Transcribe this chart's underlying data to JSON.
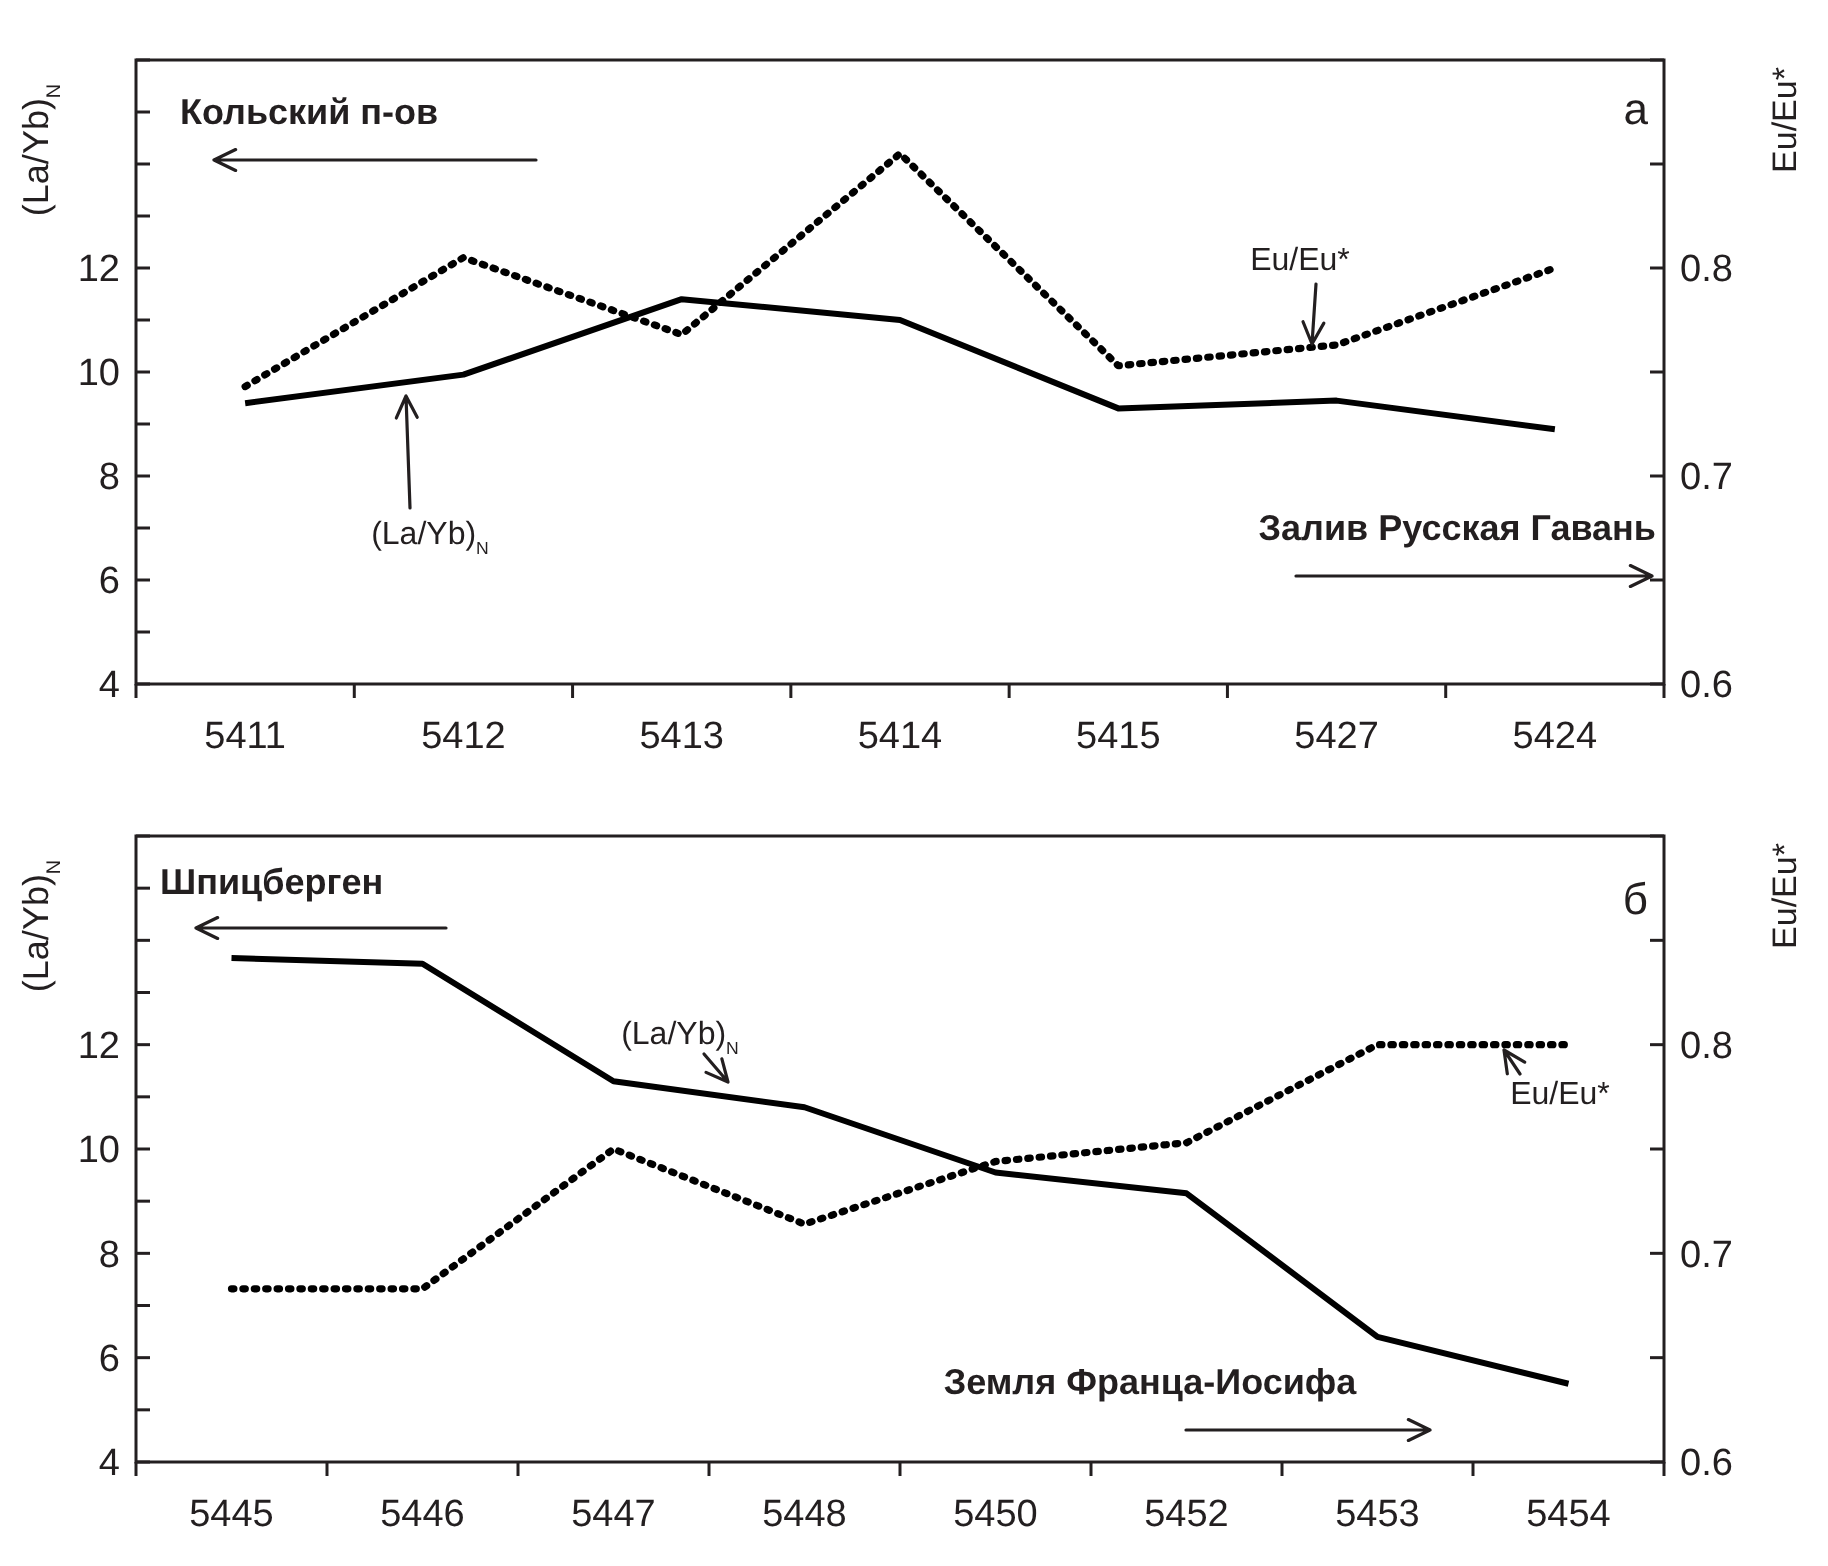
{
  "chart_data": [
    {
      "type": "line",
      "categories": [
        "5411",
        "5412",
        "5413",
        "5414",
        "5415",
        "5427",
        "5424"
      ],
      "ylabel": "(La/Yb)$_{N}$",
      "y2label": "Eu/Eu*",
      "ylim": [
        4,
        16
      ],
      "yticks": [
        4,
        {
          "value": 5,
          "label": null
        },
        6,
        {
          "value": 7,
          "label": null
        },
        8,
        {
          "value": 9,
          "label": null
        },
        10,
        {
          "value": 11,
          "label": null
        },
        12,
        {
          "value": 13,
          "label": null
        },
        {
          "value": 14,
          "label": null
        },
        {
          "value": 15,
          "label": null
        },
        {
          "value": 16,
          "label": null
        }
      ],
      "y2lim": [
        0.6,
        0.9
      ],
      "y2ticks": [
        0.6,
        {
          "value": 0.65,
          "label": null
        },
        0.7,
        {
          "value": 0.75,
          "label": null
        },
        0.8,
        {
          "value": 0.85,
          "label": null
        },
        {
          "value": 0.9,
          "label": null
        }
      ],
      "series": [
        {
          "name": "(La/Yb)$_{N}$",
          "color": "#000000",
          "line_style": "solid",
          "values": [
            9.4,
            9.95,
            11.4,
            11.0,
            9.3,
            9.45,
            8.9
          ]
        },
        {
          "name": "Eu/Eu*",
          "color": "#000000",
          "line_style": "dotted",
          "axis": "y2",
          "values": [
            0.743,
            0.805,
            0.768,
            0.855,
            0.753,
            0.763,
            0.8
          ]
        }
      ],
      "annotations": [
        "Кольский п-ов",
        "Залив Русская Гавань",
        "а"
      ]
    },
    {
      "type": "line",
      "categories": [
        "5445",
        "5446",
        "5447",
        "5448",
        "5450",
        "5452",
        "5453",
        "5454"
      ],
      "ylabel": "(La/Yb)$_{N}$",
      "y2label": "Eu/Eu*",
      "ylim": [
        4,
        16
      ],
      "yticks": [
        4,
        {
          "value": 5,
          "label": null
        },
        6,
        {
          "value": 7,
          "label": null
        },
        8,
        {
          "value": 9,
          "label": null
        },
        10,
        {
          "value": 11,
          "label": null
        },
        12,
        {
          "value": 13,
          "label": null
        },
        {
          "value": 14,
          "label": null
        },
        {
          "value": 15,
          "label": null
        },
        {
          "value": 16,
          "label": null
        }
      ],
      "y2lim": [
        0.6,
        0.9
      ],
      "y2ticks": [
        0.6,
        {
          "value": 0.65,
          "label": null
        },
        0.7,
        {
          "value": 0.75,
          "label": null
        },
        0.8,
        {
          "value": 0.85,
          "label": null
        },
        {
          "value": 0.9,
          "label": null
        }
      ],
      "series": [
        {
          "name": "(La/Yb)$_{N}$",
          "color": "#000000",
          "line_style": "solid",
          "values": [
            13.66,
            13.55,
            11.3,
            10.8,
            9.55,
            9.15,
            6.4,
            5.5
          ]
        },
        {
          "name": "Eu/Eu*",
          "color": "#000000",
          "line_style": "dotted",
          "axis": "y2",
          "values": [
            0.683,
            0.683,
            0.75,
            0.714,
            0.744,
            0.753,
            0.8,
            0.8
          ]
        }
      ],
      "annotations": [
        "Шпицберген",
        "Земля Франца-Иосифа",
        "б"
      ]
    }
  ]
}
